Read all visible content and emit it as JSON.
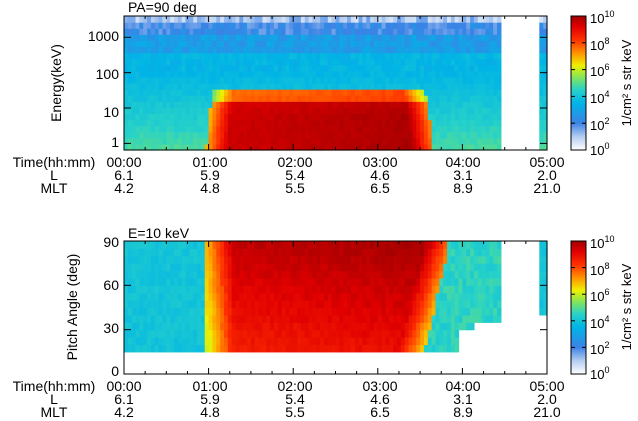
{
  "chart_data": [
    {
      "type": "heatmap",
      "title": "PA=90 deg",
      "ylabel": "Energy(keV)",
      "y_scale": "log",
      "ylim": [
        0.65,
        4000
      ],
      "y_ticks": [
        {
          "value": 1,
          "label": "1"
        },
        {
          "value": 10,
          "label": "10"
        },
        {
          "value": 100,
          "label": "100"
        },
        {
          "value": 1000,
          "label": "1000"
        }
      ],
      "x_tick_rows": [
        {
          "label": "Time(hh:mm)",
          "values": [
            "00:00",
            "01:00",
            "02:00",
            "03:00",
            "04:00",
            "05:00"
          ]
        },
        {
          "label": "L",
          "values": [
            "6.1",
            "5.9",
            "5.4",
            "4.6",
            "3.1",
            "2.0"
          ]
        },
        {
          "label": "MLT",
          "values": [
            "4.2",
            "4.8",
            "5.5",
            "6.5",
            "8.9",
            "21.0"
          ]
        }
      ],
      "colorbar": {
        "label": "1/cm² s str keV",
        "scale": "log",
        "range_exp": [
          0,
          10
        ],
        "ticks": [
          {
            "value": 10000000000.0,
            "base": "10",
            "exp": "10"
          },
          {
            "value": 100000000.0,
            "base": "10",
            "exp": "8"
          },
          {
            "value": 1000000.0,
            "base": "10",
            "exp": "6"
          },
          {
            "value": 10000.0,
            "base": "10",
            "exp": "4"
          },
          {
            "value": 100.0,
            "base": "10",
            "exp": "2"
          },
          {
            "value": 1,
            "base": "10",
            "exp": "0"
          }
        ]
      },
      "features": {
        "injection_start_hh": 0.98,
        "injection_end_hh": 3.65,
        "injection_max_energy_kev": 30,
        "data_gap_hh": [
          4.45,
          4.9
        ],
        "peak_log_flux": 9.6
      }
    },
    {
      "type": "heatmap",
      "title": "E=10 keV",
      "ylabel": "Pitch Angle (deg)",
      "ylim": [
        0,
        90
      ],
      "y_ticks": [
        {
          "value": 0,
          "label": "0"
        },
        {
          "value": 30,
          "label": "30"
        },
        {
          "value": 60,
          "label": "60"
        },
        {
          "value": 90,
          "label": "90"
        }
      ],
      "x_tick_rows": [
        {
          "label": "Time(hh:mm)",
          "values": [
            "00:00",
            "01:00",
            "02:00",
            "03:00",
            "04:00",
            "05:00"
          ]
        },
        {
          "label": "L",
          "values": [
            "6.1",
            "5.9",
            "5.4",
            "4.6",
            "3.1",
            "2.0"
          ]
        },
        {
          "label": "MLT",
          "values": [
            "4.2",
            "4.8",
            "5.5",
            "6.5",
            "8.9",
            "21.0"
          ]
        }
      ],
      "colorbar": {
        "label": "1/cm² s str keV",
        "scale": "log",
        "range_exp": [
          0,
          10
        ],
        "ticks": [
          {
            "value": 10000000000.0,
            "base": "10",
            "exp": "10"
          },
          {
            "value": 100000000.0,
            "base": "10",
            "exp": "8"
          },
          {
            "value": 1000000.0,
            "base": "10",
            "exp": "6"
          },
          {
            "value": 10000.0,
            "base": "10",
            "exp": "4"
          },
          {
            "value": 100.0,
            "base": "10",
            "exp": "2"
          },
          {
            "value": 1,
            "base": "10",
            "exp": "0"
          }
        ]
      },
      "features": {
        "injection_start_hh": 1.0,
        "injection_end_hh": 3.85,
        "loss_cone_deg": 16,
        "data_gap_hh": [
          4.45,
          4.9
        ],
        "peak_log_flux": 9.5
      }
    }
  ]
}
